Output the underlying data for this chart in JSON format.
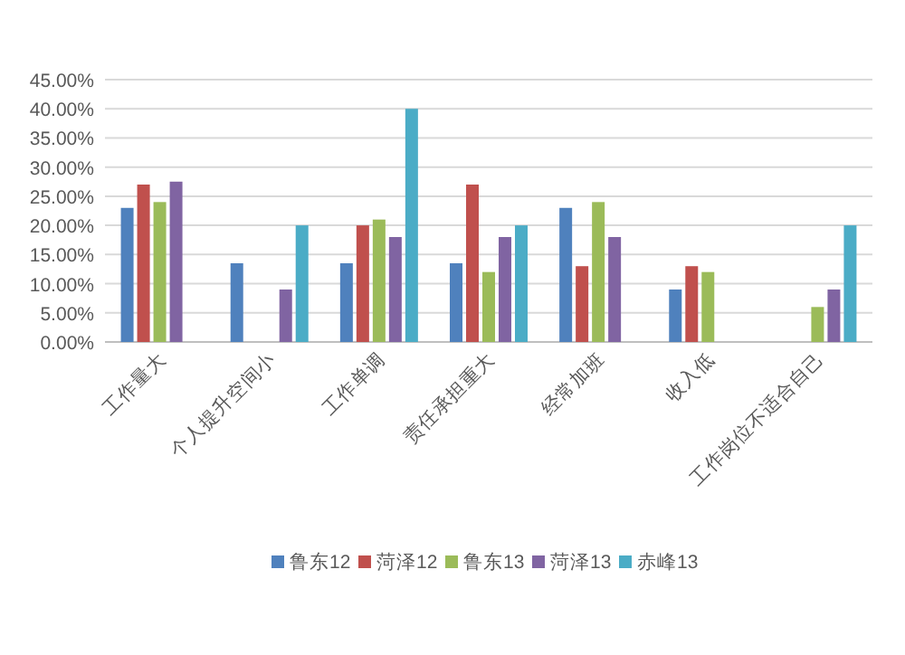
{
  "chart_data": {
    "type": "bar",
    "categories": [
      "工作量大",
      "个人提升空间小",
      "工作单调",
      "责任承担重大",
      "经常加班",
      "收入低",
      "工作岗位不适合自己"
    ],
    "series": [
      {
        "name": "鲁东12",
        "color": "#4f81bd",
        "values": [
          23,
          13.5,
          13.5,
          13.5,
          23,
          9,
          null
        ]
      },
      {
        "name": "菏泽12",
        "color": "#c0504d",
        "values": [
          27,
          null,
          20,
          27,
          13,
          13,
          null
        ]
      },
      {
        "name": "鲁东13",
        "color": "#9bbb59",
        "values": [
          24,
          null,
          21,
          12,
          24,
          12,
          6
        ]
      },
      {
        "name": "菏泽13",
        "color": "#8064a2",
        "values": [
          27.5,
          9,
          18,
          18,
          18,
          null,
          9
        ]
      },
      {
        "name": "赤峰13",
        "color": "#4bacc6",
        "values": [
          null,
          20,
          40,
          20,
          null,
          null,
          20
        ]
      }
    ],
    "ylim": [
      0,
      45
    ],
    "yticks": [
      {
        "value": 0,
        "label": "0.00%"
      },
      {
        "value": 5,
        "label": "5.00%"
      },
      {
        "value": 10,
        "label": "10.00%"
      },
      {
        "value": 15,
        "label": "15.00%"
      },
      {
        "value": 20,
        "label": "20.00%"
      },
      {
        "value": 25,
        "label": "25.00%"
      },
      {
        "value": 30,
        "label": "30.00%"
      },
      {
        "value": 35,
        "label": "35.00%"
      },
      {
        "value": 40,
        "label": "40.00%"
      },
      {
        "value": 45,
        "label": "45.00%"
      }
    ],
    "grid": "y",
    "legend": "bottom"
  }
}
